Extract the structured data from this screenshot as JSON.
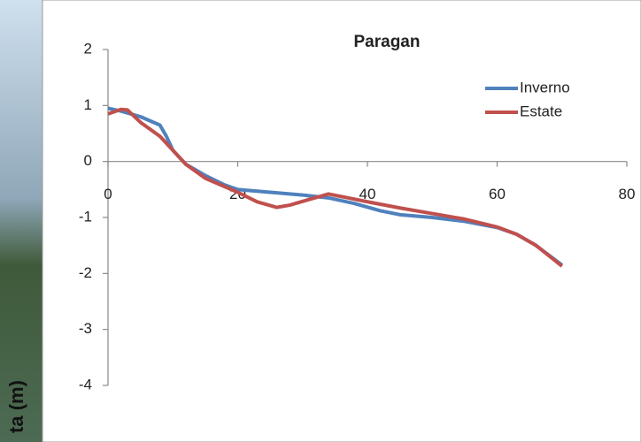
{
  "chart_data": {
    "type": "line",
    "title": "Paragan",
    "y_label": "ta (m)",
    "xlim": [
      0,
      80
    ],
    "xticks": [
      0,
      20,
      40,
      60,
      80
    ],
    "ylim": [
      -4,
      2
    ],
    "yticks": [
      -4,
      -3,
      -2,
      -1,
      0,
      1,
      2
    ],
    "legend": "upper right",
    "series": [
      {
        "name": "Inverno",
        "color": "#4f81bd",
        "x": [
          0,
          2,
          5,
          8,
          9,
          10,
          12,
          15,
          18,
          20,
          25,
          30,
          34,
          38,
          42,
          45,
          50,
          55,
          60,
          63,
          66,
          70
        ],
        "values": [
          0.95,
          0.9,
          0.8,
          0.65,
          0.45,
          0.2,
          -0.05,
          -0.25,
          -0.42,
          -0.5,
          -0.55,
          -0.6,
          -0.65,
          -0.75,
          -0.88,
          -0.95,
          -1.0,
          -1.07,
          -1.18,
          -1.3,
          -1.5,
          -1.85
        ]
      },
      {
        "name": "Estate",
        "color": "#c0504d",
        "x": [
          0,
          2,
          3,
          5,
          8,
          10,
          12,
          15,
          20,
          23,
          26,
          28,
          31,
          34,
          37,
          40,
          45,
          50,
          55,
          60,
          63,
          66,
          70
        ],
        "values": [
          0.85,
          0.93,
          0.92,
          0.7,
          0.45,
          0.2,
          -0.05,
          -0.3,
          -0.55,
          -0.72,
          -0.82,
          -0.78,
          -0.68,
          -0.58,
          -0.65,
          -0.72,
          -0.83,
          -0.93,
          -1.03,
          -1.17,
          -1.3,
          -1.5,
          -1.87
        ]
      }
    ]
  }
}
